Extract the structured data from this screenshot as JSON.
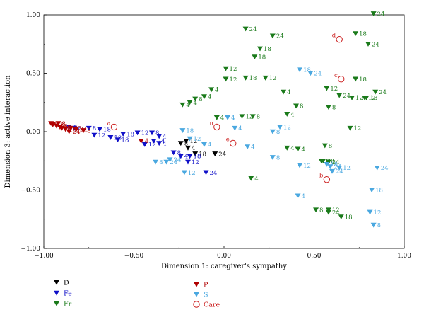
{
  "chart_data": {
    "type": "scatter",
    "title": "",
    "xlabel": "Dimension 1: caregiver's sympathy",
    "ylabel": "Dimension 3: active interaction",
    "xlim": [
      -1.0,
      1.0
    ],
    "ylim": [
      -1.0,
      1.0
    ],
    "xticks": [
      "−1.00",
      "−0.50",
      "0.00",
      "0.50",
      "1.00"
    ],
    "yticks": [
      "1.00",
      "0.50",
      "0.00",
      "−0.50",
      "−1.00"
    ],
    "grid": false,
    "legend_position": "bottom-left",
    "series": [
      {
        "name": "D",
        "color": "#000000",
        "marker": "triangle-down",
        "points": [
          {
            "x": -0.24,
            "y": -0.1,
            "label": "8"
          },
          {
            "x": -0.21,
            "y": -0.08,
            "label": "12"
          },
          {
            "x": -0.2,
            "y": -0.14,
            "label": "4"
          },
          {
            "x": -0.16,
            "y": -0.19,
            "label": "18"
          },
          {
            "x": -0.05,
            "y": -0.19,
            "label": "24"
          }
        ]
      },
      {
        "name": "Fe",
        "color": "#1010c8",
        "marker": "triangle-down",
        "points": [
          {
            "x": -0.86,
            "y": 0.04,
            "label": "4"
          },
          {
            "x": -0.83,
            "y": 0.03,
            "label": "8"
          },
          {
            "x": -0.75,
            "y": 0.03,
            "label": "8"
          },
          {
            "x": -0.69,
            "y": 0.02,
            "label": "18"
          },
          {
            "x": -0.72,
            "y": -0.03,
            "label": "12"
          },
          {
            "x": -0.63,
            "y": -0.05,
            "label": "18"
          },
          {
            "x": -0.56,
            "y": -0.02,
            "label": "18"
          },
          {
            "x": -0.48,
            "y": -0.01,
            "label": "12"
          },
          {
            "x": -0.4,
            "y": -0.01,
            "label": "8"
          },
          {
            "x": -0.36,
            "y": -0.04,
            "label": "4"
          },
          {
            "x": -0.39,
            "y": -0.08,
            "label": "24"
          },
          {
            "x": -0.44,
            "y": -0.11,
            "label": "12"
          },
          {
            "x": -0.36,
            "y": -0.1,
            "label": "4"
          },
          {
            "x": -0.59,
            "y": -0.07,
            "label": "18"
          },
          {
            "x": -0.28,
            "y": -0.18,
            "label": "8"
          },
          {
            "x": -0.24,
            "y": -0.21,
            "label": "4"
          },
          {
            "x": -0.19,
            "y": -0.21,
            "label": "18"
          },
          {
            "x": -0.2,
            "y": -0.26,
            "label": "12"
          },
          {
            "x": -0.1,
            "y": -0.35,
            "label": "24"
          }
        ]
      },
      {
        "name": "Fr",
        "color": "#1a7a1a",
        "marker": "triangle-down",
        "points": [
          {
            "x": 0.83,
            "y": 1.01,
            "label": "24"
          },
          {
            "x": 0.12,
            "y": 0.88,
            "label": "24"
          },
          {
            "x": 0.27,
            "y": 0.82,
            "label": "24"
          },
          {
            "x": 0.73,
            "y": 0.84,
            "label": "18"
          },
          {
            "x": 0.8,
            "y": 0.75,
            "label": "24"
          },
          {
            "x": 0.2,
            "y": 0.71,
            "label": "18"
          },
          {
            "x": 0.17,
            "y": 0.64,
            "label": "18"
          },
          {
            "x": 0.01,
            "y": 0.54,
            "label": "12"
          },
          {
            "x": 0.01,
            "y": 0.45,
            "label": "12"
          },
          {
            "x": 0.12,
            "y": 0.46,
            "label": "18"
          },
          {
            "x": 0.23,
            "y": 0.46,
            "label": "12"
          },
          {
            "x": 0.73,
            "y": 0.45,
            "label": "18"
          },
          {
            "x": 0.57,
            "y": 0.37,
            "label": "12"
          },
          {
            "x": 0.71,
            "y": 0.29,
            "label": "12"
          },
          {
            "x": 0.78,
            "y": 0.29,
            "label": "12"
          },
          {
            "x": 0.84,
            "y": 0.34,
            "label": "24"
          },
          {
            "x": 0.79,
            "y": 0.29,
            "label": "18"
          },
          {
            "x": 0.64,
            "y": 0.31,
            "label": "24"
          },
          {
            "x": -0.07,
            "y": 0.36,
            "label": "4"
          },
          {
            "x": -0.11,
            "y": 0.3,
            "label": "4"
          },
          {
            "x": -0.16,
            "y": 0.28,
            "label": "8"
          },
          {
            "x": -0.19,
            "y": 0.25,
            "label": "4"
          },
          {
            "x": -0.23,
            "y": 0.23,
            "label": "4"
          },
          {
            "x": 0.33,
            "y": 0.34,
            "label": "4"
          },
          {
            "x": 0.4,
            "y": 0.22,
            "label": "8"
          },
          {
            "x": 0.58,
            "y": 0.21,
            "label": "8"
          },
          {
            "x": -0.04,
            "y": 0.12,
            "label": "4"
          },
          {
            "x": 0.1,
            "y": 0.13,
            "label": "12"
          },
          {
            "x": 0.16,
            "y": 0.13,
            "label": "8"
          },
          {
            "x": 0.35,
            "y": 0.15,
            "label": "4"
          },
          {
            "x": 0.7,
            "y": 0.03,
            "label": "12"
          },
          {
            "x": 0.35,
            "y": -0.14,
            "label": "4"
          },
          {
            "x": 0.41,
            "y": -0.15,
            "label": "4"
          },
          {
            "x": 0.56,
            "y": -0.12,
            "label": "8"
          },
          {
            "x": 0.55,
            "y": -0.25,
            "label": "18"
          },
          {
            "x": 0.58,
            "y": -0.26,
            "label": "24"
          },
          {
            "x": 0.54,
            "y": -0.25,
            "label": "18"
          },
          {
            "x": 0.15,
            "y": -0.4,
            "label": "4"
          },
          {
            "x": 0.51,
            "y": -0.67,
            "label": "8"
          },
          {
            "x": 0.58,
            "y": -0.67,
            "label": "12"
          },
          {
            "x": 0.58,
            "y": -0.69,
            "label": "24"
          },
          {
            "x": 0.65,
            "y": -0.73,
            "label": "18"
          }
        ]
      },
      {
        "name": "P",
        "color": "#b00000",
        "marker": "triangle-down",
        "points": [
          {
            "x": -0.96,
            "y": 0.07,
            "label": "4"
          },
          {
            "x": -0.95,
            "y": 0.06,
            "label": "12"
          },
          {
            "x": -0.93,
            "y": 0.05,
            "label": "18"
          },
          {
            "x": -0.92,
            "y": 0.07,
            "label": "8"
          },
          {
            "x": -0.91,
            "y": 0.04,
            "label": "12"
          },
          {
            "x": -0.9,
            "y": 0.03,
            "label": "8"
          },
          {
            "x": -0.88,
            "y": 0.02,
            "label": "18"
          },
          {
            "x": -0.86,
            "y": 0.0,
            "label": "24"
          },
          {
            "x": -0.85,
            "y": 0.03,
            "label": "12"
          },
          {
            "x": -0.82,
            "y": 0.02,
            "label": "24"
          },
          {
            "x": -0.78,
            "y": 0.01,
            "label": "8"
          },
          {
            "x": -0.46,
            "y": -0.08,
            "label": "4"
          }
        ]
      },
      {
        "name": "S",
        "color": "#4aa8e0",
        "marker": "triangle-down",
        "points": [
          {
            "x": 0.42,
            "y": 0.53,
            "label": "18"
          },
          {
            "x": 0.48,
            "y": 0.5,
            "label": "24"
          },
          {
            "x": 0.02,
            "y": 0.12,
            "label": "4"
          },
          {
            "x": 0.06,
            "y": 0.03,
            "label": "4"
          },
          {
            "x": 0.27,
            "y": 0.0,
            "label": "8"
          },
          {
            "x": 0.31,
            "y": 0.04,
            "label": "12"
          },
          {
            "x": -0.23,
            "y": 0.01,
            "label": "18"
          },
          {
            "x": -0.19,
            "y": -0.06,
            "label": "12"
          },
          {
            "x": -0.11,
            "y": -0.11,
            "label": "4"
          },
          {
            "x": 0.13,
            "y": -0.13,
            "label": "4"
          },
          {
            "x": 0.27,
            "y": -0.22,
            "label": "8"
          },
          {
            "x": -0.38,
            "y": -0.26,
            "label": "8"
          },
          {
            "x": -0.32,
            "y": -0.26,
            "label": "24"
          },
          {
            "x": -0.3,
            "y": -0.24,
            "label": "24"
          },
          {
            "x": -0.22,
            "y": -0.35,
            "label": "12"
          },
          {
            "x": 0.42,
            "y": -0.29,
            "label": "12"
          },
          {
            "x": 0.41,
            "y": -0.55,
            "label": "4"
          },
          {
            "x": 0.57,
            "y": -0.28,
            "label": "18"
          },
          {
            "x": 0.59,
            "y": -0.3,
            "label": "24"
          },
          {
            "x": 0.6,
            "y": -0.34,
            "label": "24"
          },
          {
            "x": 0.64,
            "y": -0.31,
            "label": "12"
          },
          {
            "x": 0.85,
            "y": -0.31,
            "label": "24"
          },
          {
            "x": 0.82,
            "y": -0.5,
            "label": "18"
          },
          {
            "x": 0.81,
            "y": -0.69,
            "label": "12"
          },
          {
            "x": 0.83,
            "y": -0.8,
            "label": "8"
          }
        ]
      },
      {
        "name": "Care",
        "color": "#cc2020",
        "marker": "circle-open",
        "points": [
          {
            "x": -0.61,
            "y": 0.04,
            "label": "a"
          },
          {
            "x": -0.04,
            "y": 0.04,
            "label": "n"
          },
          {
            "x": 0.05,
            "y": -0.1,
            "label": "e"
          },
          {
            "x": 0.64,
            "y": 0.79,
            "label": "d"
          },
          {
            "x": 0.65,
            "y": 0.45,
            "label": "c"
          },
          {
            "x": 0.57,
            "y": -0.41,
            "label": "b"
          }
        ]
      }
    ]
  }
}
